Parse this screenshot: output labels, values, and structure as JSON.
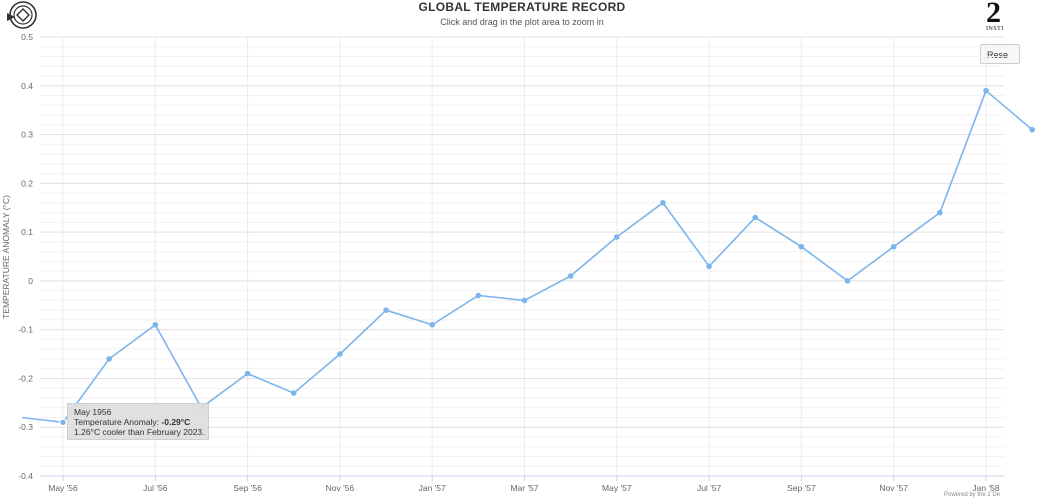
{
  "header": {
    "title": "GLOBAL TEMPERATURE RECORD",
    "subtitle": "Click and drag in the plot area to zoom in"
  },
  "brand": {
    "glyph": "2",
    "caption": "INSTI"
  },
  "reset_button": {
    "label": "Rese"
  },
  "credit": "Powered by the 2 De",
  "tooltip": {
    "date": "May 1956",
    "label": "Temperature Anomaly: ",
    "value": "-0.29°C",
    "comparison": "1.26°C cooler than February 2023."
  },
  "chart_data": {
    "type": "line",
    "title": "GLOBAL TEMPERATURE RECORD",
    "ylabel": "TEMPERATURE ANOMALY (°C)",
    "xlabel": "",
    "ylim": [
      -0.4,
      0.5
    ],
    "yticks": [
      "0.5",
      "0.4",
      "0.3",
      "0.2",
      "0.1",
      "0",
      "-0.1",
      "-0.2",
      "-0.3",
      "-0.4"
    ],
    "xticks": [
      "May '56",
      "Jul '56",
      "Sep '56",
      "Nov '56",
      "Jan '57",
      "Mar '57",
      "May '57",
      "Jul '57",
      "Sep '57",
      "Nov '57",
      "Jan '58"
    ],
    "grid": true,
    "line_color": "#7cb5ec",
    "series": [
      {
        "x": [
          "1956-04",
          "1956-05",
          "1956-06",
          "1956-07",
          "1956-08",
          "1956-09",
          "1956-10",
          "1956-11",
          "1956-12",
          "1957-01",
          "1957-02",
          "1957-03",
          "1957-04",
          "1957-05",
          "1957-06",
          "1957-07",
          "1957-08",
          "1957-09",
          "1957-10",
          "1957-11",
          "1957-12",
          "1958-01",
          "1958-02"
        ],
        "values": [
          -0.28,
          -0.29,
          -0.16,
          -0.09,
          -0.26,
          -0.19,
          -0.23,
          -0.15,
          -0.06,
          -0.09,
          -0.03,
          -0.04,
          0.01,
          0.09,
          0.16,
          0.03,
          0.13,
          0.07,
          0.0,
          0.07,
          0.14,
          0.39,
          0.31
        ]
      }
    ],
    "highlighted_point": "1956-05"
  }
}
